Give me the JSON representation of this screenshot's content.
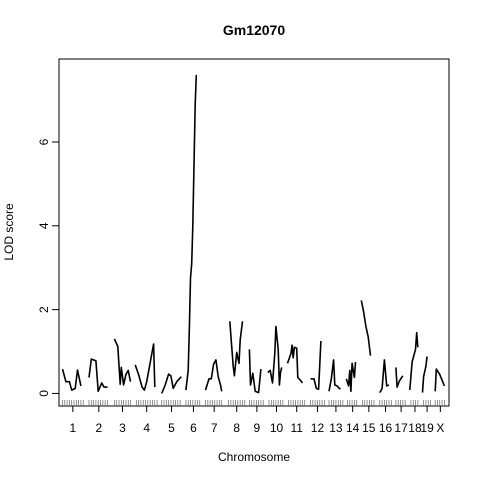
{
  "chart_data": {
    "type": "line",
    "title": "Gm12070",
    "xlabel": "Chromosome",
    "ylabel": "LOD score",
    "ylim": [
      -0.3,
      7.98
    ],
    "y_ticks": [
      0,
      2,
      4,
      6
    ],
    "grid": false,
    "legend": "none",
    "line_color": "#000000",
    "chromosomes": [
      {
        "label": "1",
        "start": 0,
        "end": 20,
        "markers": [
          1,
          3,
          5,
          7,
          9,
          11,
          13,
          15,
          17,
          19
        ],
        "segments": [
          [
            [
              1,
              0.58
            ],
            [
              4,
              0.28
            ],
            [
              7,
              0.28
            ],
            [
              9,
              0.08
            ],
            [
              12,
              0.12
            ],
            [
              14,
              0.56
            ],
            [
              17,
              0.18
            ]
          ]
        ]
      },
      {
        "label": "2",
        "start": 23,
        "end": 42,
        "markers": [
          24,
          26,
          28,
          30,
          32,
          34,
          36,
          38,
          40
        ],
        "segments": [
          [
            [
              24,
              0.38
            ],
            [
              26,
              0.82
            ],
            [
              30,
              0.78
            ],
            [
              32,
              0.05
            ],
            [
              35,
              0.25
            ],
            [
              37,
              0.15
            ],
            [
              40,
              0.15
            ]
          ]
        ]
      },
      {
        "label": "3",
        "start": 45,
        "end": 61,
        "markers": [
          46,
          48,
          50,
          52,
          54,
          56,
          58,
          60
        ],
        "segments": [
          [
            [
              46,
              1.3
            ],
            [
              49,
              1.12
            ],
            [
              51,
              0.22
            ],
            [
              52,
              0.62
            ],
            [
              54,
              0.2
            ],
            [
              56,
              0.45
            ],
            [
              58,
              0.55
            ],
            [
              60,
              0.28
            ]
          ]
        ]
      },
      {
        "label": "4",
        "start": 64,
        "end": 84,
        "markers": [
          65,
          67,
          69,
          71,
          73,
          75,
          77,
          79,
          81,
          83
        ],
        "segments": [
          [
            [
              64,
              0.68
            ],
            [
              67,
              0.45
            ],
            [
              70,
              0.15
            ],
            [
              72,
              0.08
            ],
            [
              74,
              0.28
            ],
            [
              78,
              0.88
            ],
            [
              80,
              1.18
            ],
            [
              81,
              0.15
            ]
          ]
        ]
      },
      {
        "label": "5",
        "start": 86,
        "end": 105,
        "markers": [
          87,
          89,
          91,
          93,
          95,
          97,
          99,
          101,
          103
        ],
        "segments": [
          [
            [
              87,
              0.0
            ],
            [
              90,
              0.2
            ],
            [
              93,
              0.46
            ],
            [
              95,
              0.42
            ],
            [
              97,
              0.12
            ],
            [
              100,
              0.28
            ],
            [
              104,
              0.4
            ]
          ]
        ]
      },
      {
        "label": "6",
        "start": 107,
        "end": 122,
        "markers": [
          108,
          110,
          112,
          114,
          116,
          118,
          120
        ],
        "segments": [
          [
            [
              108,
              0.08
            ],
            [
              110,
              0.55
            ],
            [
              111,
              1.6
            ],
            [
              112,
              2.75
            ],
            [
              113,
              3.1
            ],
            [
              114,
              4.0
            ],
            [
              116,
              6.9
            ],
            [
              117,
              7.6
            ]
          ]
        ]
      },
      {
        "label": "7",
        "start": 124,
        "end": 141,
        "markers": [
          125,
          127,
          129,
          131,
          133,
          135,
          137,
          139
        ],
        "segments": [
          [
            [
              125,
              0.08
            ],
            [
              128,
              0.35
            ],
            [
              130,
              0.35
            ],
            [
              132,
              0.7
            ],
            [
              134,
              0.8
            ],
            [
              136,
              0.4
            ],
            [
              138,
              0.2
            ],
            [
              139,
              0.05
            ]
          ]
        ]
      },
      {
        "label": "8",
        "start": 144,
        "end": 160,
        "markers": [
          145,
          147,
          149,
          151,
          153,
          155,
          157,
          159
        ],
        "segments": [
          [
            [
              146,
              1.72
            ],
            [
              149,
              0.65
            ],
            [
              150,
              0.42
            ],
            [
              152,
              0.98
            ],
            [
              154,
              0.72
            ],
            [
              155,
              1.28
            ],
            [
              157,
              1.72
            ]
          ]
        ]
      },
      {
        "label": "9",
        "start": 162,
        "end": 177,
        "markers": [
          163,
          165,
          167,
          169,
          171,
          173,
          175
        ],
        "segments": [
          [
            [
              163,
              1.05
            ],
            [
              164,
              0.2
            ],
            [
              166,
              0.48
            ],
            [
              168,
              0.05
            ],
            [
              171,
              0.02
            ],
            [
              173,
              0.58
            ]
          ]
        ]
      },
      {
        "label": "10",
        "start": 179,
        "end": 194,
        "markers": [
          180,
          182,
          184,
          186,
          188,
          190,
          192
        ],
        "segments": [
          [
            [
              179,
              0.5
            ],
            [
              181,
              0.55
            ],
            [
              183,
              0.25
            ],
            [
              185,
              0.95
            ],
            [
              186,
              1.6
            ],
            [
              188,
              1.05
            ],
            [
              189,
              0.2
            ],
            [
              190,
              0.5
            ],
            [
              191,
              0.62
            ]
          ]
        ]
      },
      {
        "label": "11",
        "start": 196,
        "end": 212,
        "markers": [
          197,
          199,
          201,
          203,
          205,
          207,
          209,
          211
        ],
        "segments": [
          [
            [
              196,
              0.72
            ],
            [
              199,
              0.95
            ],
            [
              200,
              1.15
            ],
            [
              201,
              0.85
            ],
            [
              202,
              1.1
            ],
            [
              204,
              1.08
            ],
            [
              205,
              0.38
            ],
            [
              207,
              0.32
            ],
            [
              209,
              0.25
            ]
          ]
        ]
      },
      {
        "label": "12",
        "start": 215,
        "end": 229,
        "markers": [
          216,
          218,
          220,
          222,
          224,
          226,
          228
        ],
        "segments": [
          [
            [
              216,
              0.35
            ],
            [
              219,
              0.35
            ],
            [
              221,
              0.12
            ],
            [
              223,
              0.1
            ],
            [
              225,
              1.25
            ]
          ]
        ]
      },
      {
        "label": "13",
        "start": 231,
        "end": 245,
        "markers": [
          232,
          234,
          236,
          238,
          240,
          242,
          244
        ],
        "segments": [
          [
            [
              232,
              0.05
            ],
            [
              234,
              0.35
            ],
            [
              236,
              0.8
            ],
            [
              237,
              0.2
            ],
            [
              239,
              0.18
            ],
            [
              241,
              0.12
            ],
            [
              242,
              0.1
            ]
          ]
        ]
      },
      {
        "label": "14",
        "start": 247,
        "end": 258,
        "markers": [
          248,
          250,
          252,
          254,
          256
        ],
        "segments": [
          [
            [
              247,
              0.35
            ],
            [
              249,
              0.18
            ],
            [
              250,
              0.55
            ],
            [
              251,
              0.05
            ],
            [
              252,
              0.72
            ],
            [
              254,
              0.38
            ],
            [
              255,
              0.75
            ]
          ]
        ]
      },
      {
        "label": "15",
        "start": 260,
        "end": 273,
        "markers": [
          261,
          263,
          265,
          267,
          269,
          271
        ],
        "segments": [
          [
            [
              260,
              2.22
            ],
            [
              262,
              1.95
            ],
            [
              264,
              1.6
            ],
            [
              266,
              1.35
            ],
            [
              268,
              0.9
            ]
          ]
        ]
      },
      {
        "label": "16",
        "start": 275,
        "end": 287,
        "markers": [
          276,
          278,
          280,
          282,
          284,
          286
        ],
        "segments": [
          [
            [
              276,
              0.02
            ],
            [
              278,
              0.12
            ],
            [
              280,
              0.8
            ],
            [
              282,
              0.18
            ],
            [
              284,
              0.2
            ]
          ]
        ]
      },
      {
        "label": "17",
        "start": 289,
        "end": 300,
        "markers": [
          290,
          292,
          294,
          296,
          298
        ],
        "segments": [
          [
            [
              290,
              0.62
            ],
            [
              291,
              0.15
            ],
            [
              293,
              0.3
            ],
            [
              296,
              0.42
            ]
          ]
        ]
      },
      {
        "label": "18",
        "start": 302,
        "end": 311,
        "markers": [
          303,
          305,
          307,
          309
        ],
        "segments": [
          [
            [
              302,
              0.08
            ],
            [
              304,
              0.75
            ],
            [
              307,
              1.05
            ],
            [
              308,
              1.45
            ],
            [
              309,
              1.1
            ]
          ]
        ]
      },
      {
        "label": "19",
        "start": 313,
        "end": 321,
        "markers": [
          314,
          316,
          318,
          320
        ],
        "segments": [
          [
            [
              313,
              0.02
            ],
            [
              314,
              0.4
            ],
            [
              316,
              0.65
            ],
            [
              317,
              0.88
            ]
          ]
        ]
      },
      {
        "label": "X",
        "start": 323,
        "end": 334,
        "markers": [
          324,
          326,
          328,
          330,
          332
        ],
        "segments": [
          [
            [
              324,
              0.05
            ],
            [
              325,
              0.58
            ],
            [
              328,
              0.45
            ],
            [
              332,
              0.18
            ]
          ]
        ]
      }
    ]
  }
}
